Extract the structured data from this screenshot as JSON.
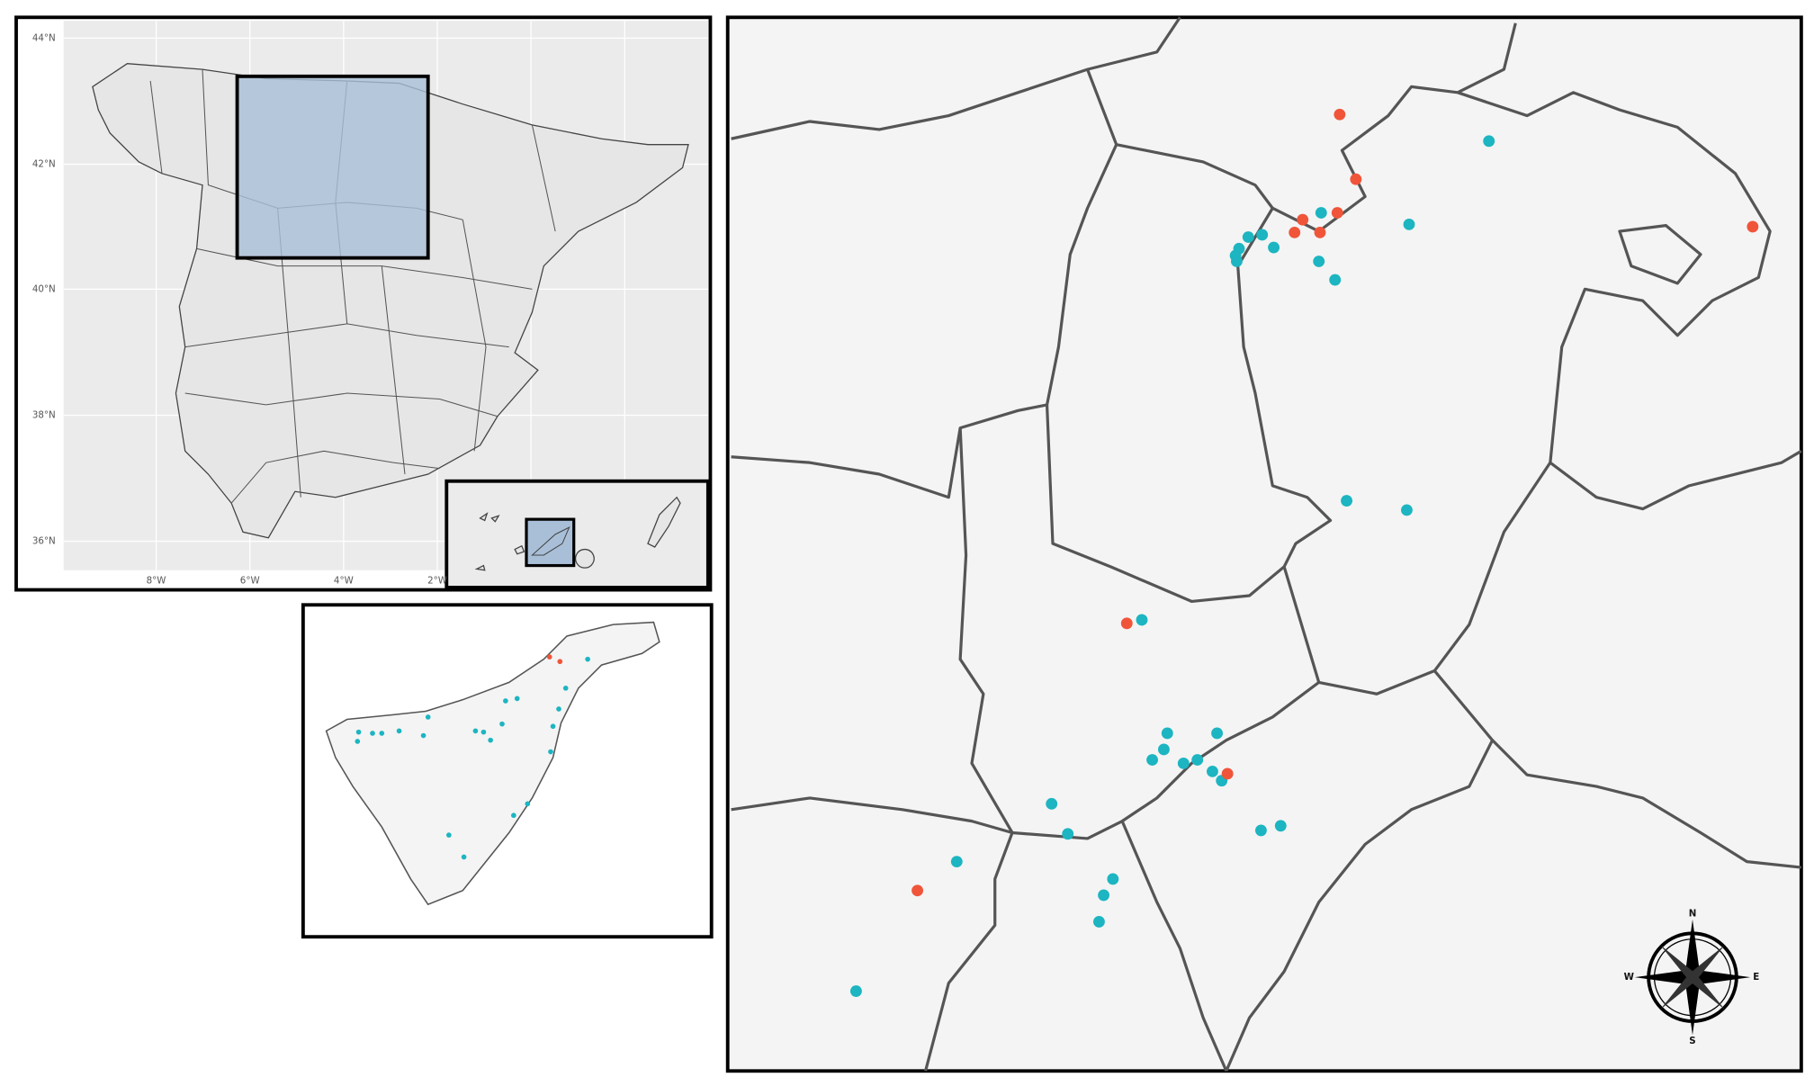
{
  "map": {
    "latitude_labels": [
      "44°N",
      "42°N",
      "40°N",
      "38°N",
      "36°N"
    ],
    "longitude_labels": [
      "8°W",
      "6°W",
      "4°W",
      "2°W"
    ],
    "compass": {
      "north": "N",
      "south": "S",
      "east": "E",
      "west": "W"
    }
  }
}
